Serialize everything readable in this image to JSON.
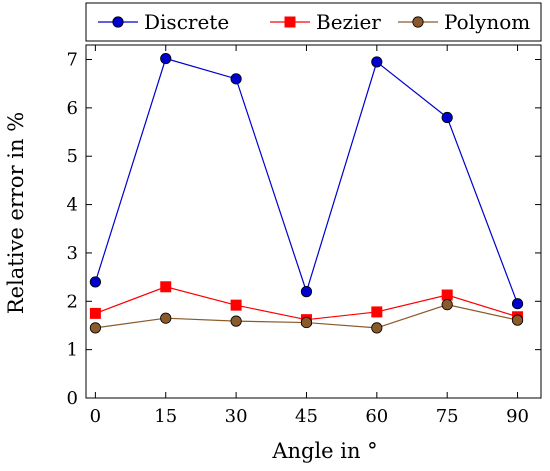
{
  "chart_data": {
    "type": "line",
    "x": [
      0,
      15,
      30,
      45,
      60,
      75,
      90
    ],
    "xticks": [
      "0",
      "15",
      "30",
      "45",
      "60",
      "75",
      "90"
    ],
    "yticks": [
      "0",
      "1",
      "2",
      "3",
      "4",
      "5",
      "6",
      "7"
    ],
    "xlim": [
      -2,
      95
    ],
    "ylim": [
      0,
      7.3
    ],
    "xlabel": "Angle in °",
    "ylabel": "Relative error in %",
    "grid": false,
    "legend": "top",
    "series": [
      {
        "name": "Discrete",
        "color": "#0000cc",
        "marker": "circle",
        "values": [
          2.4,
          7.02,
          6.6,
          2.2,
          6.95,
          5.8,
          1.95
        ]
      },
      {
        "name": "Bezier",
        "color": "#ff0000",
        "marker": "square",
        "values": [
          1.75,
          2.3,
          1.92,
          1.62,
          1.78,
          2.13,
          1.68
        ]
      },
      {
        "name": "Polynom",
        "color": "#8b5a2b",
        "marker": "circle",
        "values": [
          1.45,
          1.65,
          1.59,
          1.56,
          1.45,
          1.93,
          1.61
        ]
      }
    ]
  }
}
